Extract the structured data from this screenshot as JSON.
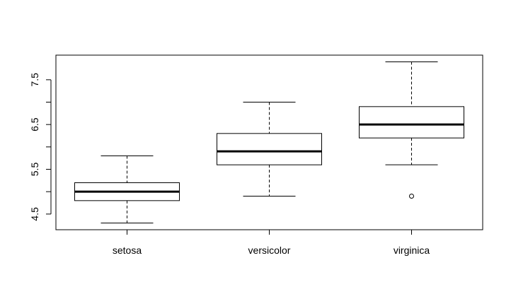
{
  "chart_data": {
    "type": "boxplot",
    "title": "",
    "xlabel": "",
    "ylabel": "",
    "categories": [
      "setosa",
      "versicolor",
      "virginica"
    ],
    "boxes": [
      {
        "category": "setosa",
        "whisker_low": 4.3,
        "q1": 4.8,
        "median": 5.0,
        "q3": 5.2,
        "whisker_high": 5.8,
        "outliers": []
      },
      {
        "category": "versicolor",
        "whisker_low": 4.9,
        "q1": 5.6,
        "median": 5.9,
        "q3": 6.3,
        "whisker_high": 7.0,
        "outliers": []
      },
      {
        "category": "virginica",
        "whisker_low": 5.6,
        "q1": 6.2,
        "median": 6.5,
        "q3": 6.9,
        "whisker_high": 7.9,
        "outliers": [
          4.9
        ]
      }
    ],
    "ylim": [
      4.15,
      8.05
    ],
    "y_ticks": [
      4.5,
      5.0,
      5.5,
      6.0,
      6.5,
      7.0,
      7.5
    ],
    "y_tick_labels": [
      "4.5",
      "",
      "5.5",
      "",
      "6.5",
      "",
      "7.5"
    ],
    "grid": false,
    "colors": {
      "box_fill": "#ffffff",
      "line": "#000000",
      "background": "#ffffff"
    }
  }
}
